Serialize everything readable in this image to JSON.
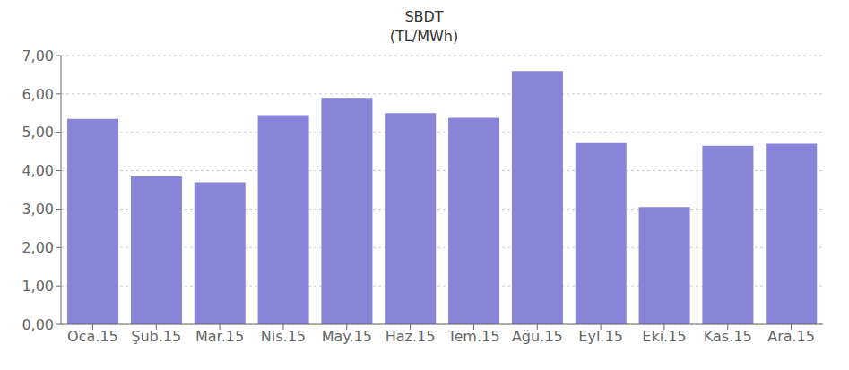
{
  "chart_data": {
    "type": "bar",
    "title": "SBDT",
    "subtitle": "(TL/MWh)",
    "categories": [
      "Oca.15",
      "Şub.15",
      "Mar.15",
      "Nis.15",
      "May.15",
      "Haz.15",
      "Tem.15",
      "Ağu.15",
      "Eyl.15",
      "Eki.15",
      "Kas.15",
      "Ara.15"
    ],
    "values": [
      5.35,
      3.85,
      3.7,
      5.45,
      5.9,
      5.5,
      5.38,
      6.6,
      4.72,
      3.05,
      4.65,
      4.7
    ],
    "color": "#8884d8",
    "ylim": [
      0,
      7.0
    ],
    "yticks": [
      {
        "value": 0.0,
        "label": "0,00"
      },
      {
        "value": 1.0,
        "label": "1,00"
      },
      {
        "value": 2.0,
        "label": "2,00"
      },
      {
        "value": 3.0,
        "label": "3,00"
      },
      {
        "value": 4.0,
        "label": "4,00"
      },
      {
        "value": 5.0,
        "label": "5,00"
      },
      {
        "value": 6.0,
        "label": "6,00"
      },
      {
        "value": 7.0,
        "label": "7,00"
      }
    ],
    "grid": true
  }
}
